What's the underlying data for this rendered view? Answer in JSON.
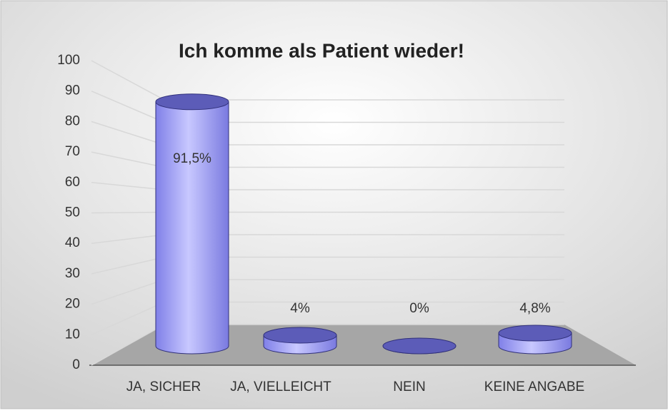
{
  "chart_data": {
    "type": "bar3d",
    "title": "Ich komme als Patient wieder!",
    "categories": [
      "JA, SICHER",
      "JA, VIELLEICHT",
      "NEIN",
      "KEINE ANGABE"
    ],
    "values": [
      91.5,
      4,
      0,
      4.8
    ],
    "value_labels": [
      "91,5%",
      "4%",
      "0%",
      "4,8%"
    ],
    "color": "#9a9af0",
    "ylim": [
      0,
      100
    ],
    "yticks": [
      0,
      10,
      20,
      30,
      40,
      50,
      60,
      70,
      80,
      90,
      100
    ],
    "grid": true
  }
}
